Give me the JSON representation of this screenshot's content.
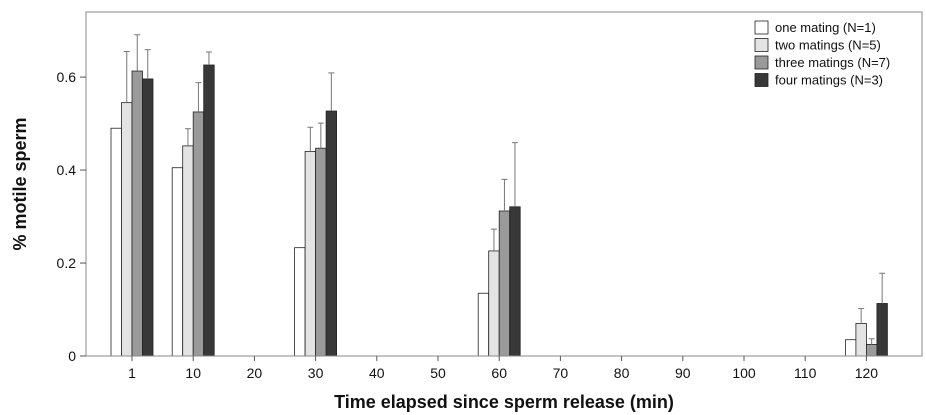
{
  "chart_data": {
    "type": "bar",
    "xlabel": "Time elapsed since sperm release (min)",
    "ylabel": "% motile sperm",
    "categories": [
      "1",
      "10",
      "20",
      "30",
      "40",
      "50",
      "60",
      "70",
      "80",
      "90",
      "100",
      "110",
      "120"
    ],
    "ylim": [
      0,
      0.74
    ],
    "y_ticks": [
      0,
      0.2,
      0.4,
      0.6
    ],
    "grid": false,
    "legend_position": "top-right",
    "error_bars": "upper only",
    "series": [
      {
        "name": "one mating (N=1)",
        "color": "#ffffff",
        "values": [
          0.49,
          0.405,
          null,
          0.233,
          null,
          null,
          0.135,
          null,
          null,
          null,
          null,
          null,
          0.035
        ],
        "errors": [
          null,
          null,
          null,
          null,
          null,
          null,
          null,
          null,
          null,
          null,
          null,
          null,
          null
        ]
      },
      {
        "name": "two matings (N=5)",
        "color": "#e3e3e3",
        "values": [
          0.545,
          0.452,
          null,
          0.44,
          null,
          null,
          0.226,
          null,
          null,
          null,
          null,
          null,
          0.07
        ],
        "errors": [
          0.11,
          0.037,
          null,
          0.052,
          null,
          null,
          0.047,
          null,
          null,
          null,
          null,
          null,
          0.032
        ]
      },
      {
        "name": "three matings (N=7)",
        "color": "#9a9a9a",
        "values": [
          0.613,
          0.525,
          null,
          0.447,
          null,
          null,
          0.312,
          null,
          null,
          null,
          null,
          null,
          0.025
        ],
        "errors": [
          0.078,
          0.063,
          null,
          0.054,
          null,
          null,
          0.068,
          null,
          null,
          null,
          null,
          null,
          0.012
        ]
      },
      {
        "name": "four matings (N=3)",
        "color": "#383838",
        "values": [
          0.596,
          0.626,
          null,
          0.527,
          null,
          null,
          0.321,
          null,
          null,
          null,
          null,
          null,
          0.113
        ],
        "errors": [
          0.063,
          0.028,
          null,
          0.082,
          null,
          null,
          0.138,
          null,
          null,
          null,
          null,
          null,
          0.065
        ]
      }
    ]
  }
}
